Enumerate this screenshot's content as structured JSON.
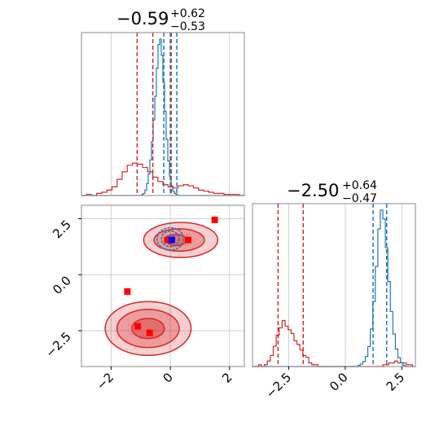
{
  "chart_data": {
    "type": "corner",
    "colors": {
      "red": "#d62728",
      "blue": "#1f77b4",
      "marker_red": "#ff0000",
      "marker_blue": "#0000ff"
    },
    "titles": [
      {
        "value": "−0.59",
        "upper": "+0.62",
        "lower": "−0.53"
      },
      {
        "value": "−2.50",
        "upper": "+0.64",
        "lower": "−0.47"
      }
    ],
    "param1_ticks": [
      {
        "v": -2,
        "label": "−2"
      },
      {
        "v": 0,
        "label": "0"
      },
      {
        "v": 2,
        "label": "2"
      }
    ],
    "param2_ticks": [
      {
        "v": -2.5,
        "label": "−2.5"
      },
      {
        "v": 0.0,
        "label": "0.0"
      },
      {
        "v": 2.5,
        "label": "2.5"
      }
    ],
    "xlim": [
      -3.0,
      2.5
    ],
    "ylim": [
      -4.1,
      3.1
    ],
    "hist1": {
      "red_quantiles": [
        -1.12,
        -0.59,
        0.03
      ],
      "blue_quantiles": [
        -0.22,
        0.0,
        0.22
      ],
      "red_counts": [
        0,
        1,
        0,
        2,
        3,
        5,
        8,
        15,
        22,
        28,
        30,
        29,
        26,
        22,
        17,
        13,
        10,
        8,
        7,
        9,
        10,
        9,
        7,
        5,
        4,
        3,
        2,
        2,
        1,
        1,
        1,
        0
      ],
      "blue_counts": [
        0,
        0,
        0,
        0,
        0,
        0,
        0,
        0,
        0,
        0,
        0,
        0,
        0,
        0,
        0,
        0,
        0,
        0,
        0,
        0,
        0,
        0,
        0,
        0,
        0,
        0,
        0,
        0,
        0,
        0,
        0,
        0,
        0,
        0,
        0,
        0,
        0,
        1,
        2,
        5,
        11,
        20,
        33,
        50,
        70,
        92,
        118,
        140,
        145,
        130,
        105,
        78,
        52,
        32,
        18,
        9,
        4,
        2,
        1,
        0,
        0,
        0,
        0,
        0,
        0,
        0,
        0,
        0,
        0,
        0,
        0,
        0,
        0,
        0,
        0,
        0,
        0,
        0,
        0,
        0,
        0,
        0,
        0,
        0,
        0,
        0,
        0,
        0,
        0,
        0,
        0,
        0,
        0,
        0,
        0,
        0,
        0,
        0,
        0,
        0
      ]
    },
    "hist2": {
      "red_quantiles": [
        -2.97,
        -2.5,
        -1.86
      ],
      "blue_quantiles": [
        1.23,
        1.45,
        1.83
      ],
      "red_counts": [
        0,
        0,
        1,
        0,
        1,
        3,
        6,
        11,
        17,
        21,
        25,
        22,
        20,
        18,
        14,
        12,
        9,
        6,
        5,
        2,
        1,
        1,
        0,
        0,
        0,
        0,
        0,
        0,
        0,
        0,
        0,
        0,
        0,
        0,
        0,
        0,
        0,
        0,
        0,
        0,
        0,
        0,
        0,
        0,
        1,
        1,
        2,
        2,
        3,
        2,
        2,
        2,
        1,
        1,
        0
      ],
      "blue_counts": [
        0,
        0,
        0,
        0,
        0,
        0,
        0,
        0,
        0,
        0,
        0,
        0,
        0,
        0,
        0,
        0,
        0,
        0,
        0,
        0,
        0,
        0,
        0,
        0,
        0,
        0,
        0,
        0,
        0,
        0,
        0,
        0,
        0,
        0,
        0,
        0,
        0,
        0,
        0,
        0,
        0,
        0,
        1,
        2,
        4,
        8,
        16,
        30,
        52,
        80,
        110,
        125,
        118,
        95,
        68,
        44,
        26,
        14,
        7,
        3,
        1,
        0,
        0,
        0,
        0
      ]
    },
    "markers_red": [
      [
        1.5,
        2.45
      ],
      [
        -1.45,
        -0.75
      ],
      [
        -1.1,
        -2.3
      ],
      [
        -0.7,
        -2.6
      ],
      [
        -0.1,
        1.55
      ],
      [
        0.6,
        1.55
      ]
    ],
    "markers_blue": [
      [
        0.05,
        1.55
      ]
    ],
    "contours_red": [
      {
        "cx": -0.75,
        "cy": -2.4,
        "rx": 1.45,
        "ry": 1.2,
        "fill": 0.4
      },
      {
        "cx": -0.75,
        "cy": -2.4,
        "rx": 1.05,
        "ry": 0.85,
        "fill": 0.55
      },
      {
        "cx": -0.75,
        "cy": -2.4,
        "rx": 0.55,
        "ry": 0.45,
        "fill": 0.7
      },
      {
        "cx": 0.35,
        "cy": 1.55,
        "rx": 1.25,
        "ry": 0.78,
        "fill": 0.4
      },
      {
        "cx": 0.3,
        "cy": 1.55,
        "rx": 0.85,
        "ry": 0.5,
        "fill": 0.55
      },
      {
        "cx": 0.2,
        "cy": 1.55,
        "rx": 0.35,
        "ry": 0.25,
        "fill": 0.7
      }
    ],
    "contours_blue": [
      {
        "cx": 0.0,
        "cy": 1.6,
        "rx": 0.45,
        "ry": 0.5
      },
      {
        "cx": 0.0,
        "cy": 1.6,
        "rx": 0.3,
        "ry": 0.35
      },
      {
        "cx": 0.0,
        "cy": 1.6,
        "rx": 0.15,
        "ry": 0.18
      }
    ],
    "grid": true
  }
}
